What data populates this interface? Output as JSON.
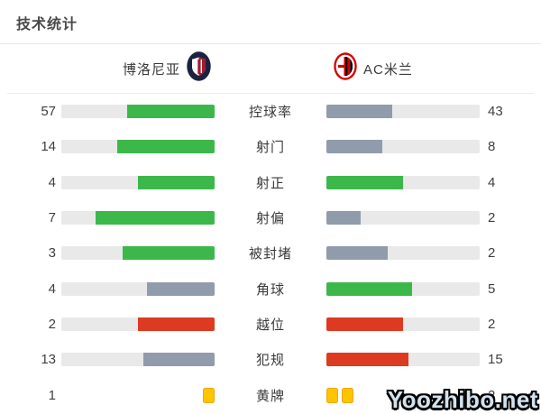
{
  "title": "技术统计",
  "header": {
    "home_team": "博洛尼亚",
    "away_team": "AC米兰",
    "home_logo": "bologna-crest",
    "away_logo": "ac-milan-crest"
  },
  "watermark": "Yoozhibo.net",
  "colors": {
    "green": "#3cb84a",
    "gray": "#909cab",
    "red": "#dc3b22",
    "track": "#e9e9e9",
    "card": "#ffc400"
  },
  "chart_data": {
    "type": "bar",
    "title": "技术统计",
    "layout": "mirrored-horizontal-paired-bars",
    "teams": [
      "博洛尼亚",
      "AC米兰"
    ],
    "rows": [
      {
        "label": "控球率",
        "home": 57,
        "away": 43,
        "home_color": "green",
        "away_color": "gray"
      },
      {
        "label": "射门",
        "home": 14,
        "away": 8,
        "home_color": "green",
        "away_color": "gray"
      },
      {
        "label": "射正",
        "home": 4,
        "away": 4,
        "home_color": "green",
        "away_color": "green"
      },
      {
        "label": "射偏",
        "home": 7,
        "away": 2,
        "home_color": "green",
        "away_color": "gray"
      },
      {
        "label": "被封堵",
        "home": 3,
        "away": 2,
        "home_color": "green",
        "away_color": "gray"
      },
      {
        "label": "角球",
        "home": 4,
        "away": 5,
        "home_color": "gray",
        "away_color": "green"
      },
      {
        "label": "越位",
        "home": 2,
        "away": 2,
        "home_color": "red",
        "away_color": "red"
      },
      {
        "label": "犯规",
        "home": 13,
        "away": 15,
        "home_color": "gray",
        "away_color": "red"
      },
      {
        "label": "黄牌",
        "home": 1,
        "away": 2,
        "type": "cards"
      }
    ]
  }
}
